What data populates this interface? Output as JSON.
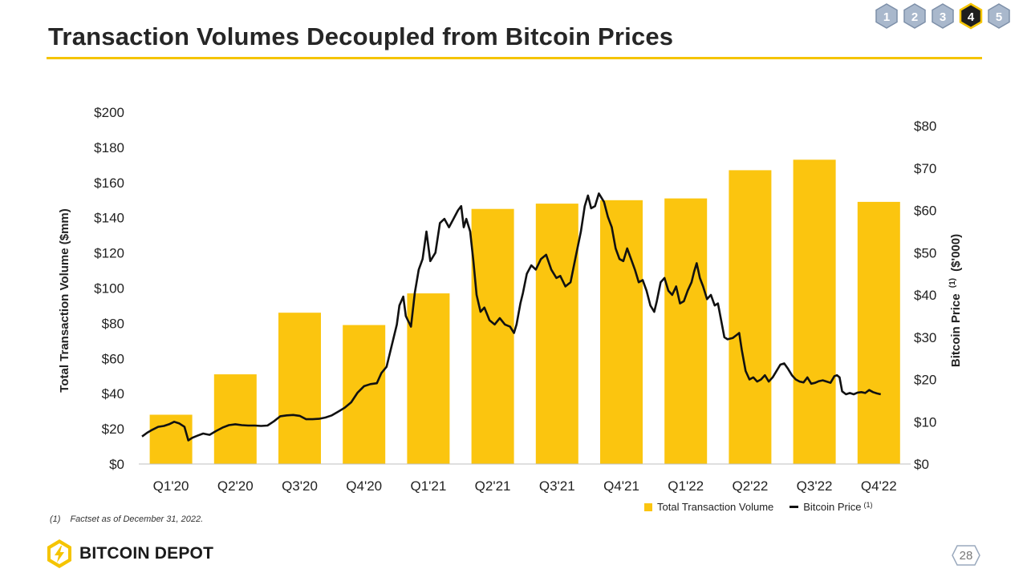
{
  "slide": {
    "title": "Transaction Volumes Decoupled from Bitcoin Prices",
    "page_number": "28",
    "brand": "BITCOIN DEPOT",
    "footnote": {
      "mark": "(1)",
      "text": "Factset as of December 31, 2022."
    }
  },
  "section_nav": {
    "items": [
      "1",
      "2",
      "3",
      "4",
      "5"
    ],
    "active": "4"
  },
  "colors": {
    "accent": "#f5c400",
    "bar": "#fbc50f",
    "line": "#111111",
    "nav_inactive": "#a9b8cc",
    "nav_active": "#1f1f1f"
  },
  "legend": {
    "bar_label": "Total Transaction Volume",
    "line_label": "Bitcoin Price",
    "line_sup": "(1)"
  },
  "chart_data": {
    "type": "bar",
    "title": "",
    "categories": [
      "Q1'20",
      "Q2'20",
      "Q3'20",
      "Q4'20",
      "Q1'21",
      "Q2'21",
      "Q3'21",
      "Q4'21",
      "Q1'22",
      "Q2'22",
      "Q3'22",
      "Q4'22"
    ],
    "series": [
      {
        "name": "Total Transaction Volume",
        "type": "bar",
        "axis": "left",
        "values": [
          28,
          51,
          86,
          79,
          97,
          145,
          148,
          150,
          151,
          167,
          173,
          149
        ]
      }
    ],
    "line_series": {
      "name": "Bitcoin Price",
      "axis": "right",
      "unit": "$'000",
      "points": [
        [
          0.0,
          6.5
        ],
        [
          0.08,
          7.4
        ],
        [
          0.16,
          8.1
        ],
        [
          0.25,
          8.8
        ],
        [
          0.34,
          9.0
        ],
        [
          0.42,
          9.4
        ],
        [
          0.5,
          10.0
        ],
        [
          0.58,
          9.6
        ],
        [
          0.66,
          8.8
        ],
        [
          0.72,
          5.6
        ],
        [
          0.78,
          6.2
        ],
        [
          0.86,
          6.7
        ],
        [
          0.95,
          7.2
        ],
        [
          1.05,
          6.9
        ],
        [
          1.15,
          7.8
        ],
        [
          1.25,
          8.6
        ],
        [
          1.35,
          9.2
        ],
        [
          1.45,
          9.4
        ],
        [
          1.55,
          9.2
        ],
        [
          1.65,
          9.1
        ],
        [
          1.75,
          9.1
        ],
        [
          1.85,
          9.0
        ],
        [
          1.95,
          9.1
        ],
        [
          2.05,
          10.1
        ],
        [
          2.15,
          11.3
        ],
        [
          2.25,
          11.5
        ],
        [
          2.35,
          11.6
        ],
        [
          2.45,
          11.4
        ],
        [
          2.55,
          10.6
        ],
        [
          2.65,
          10.6
        ],
        [
          2.75,
          10.7
        ],
        [
          2.85,
          11.0
        ],
        [
          2.95,
          11.5
        ],
        [
          3.05,
          12.4
        ],
        [
          3.15,
          13.3
        ],
        [
          3.25,
          14.6
        ],
        [
          3.35,
          16.9
        ],
        [
          3.45,
          18.4
        ],
        [
          3.55,
          18.9
        ],
        [
          3.65,
          19.1
        ],
        [
          3.72,
          21.5
        ],
        [
          3.8,
          23.0
        ],
        [
          3.88,
          28.0
        ],
        [
          3.96,
          33.0
        ],
        [
          4.0,
          37.5
        ],
        [
          4.06,
          39.6
        ],
        [
          4.1,
          35.0
        ],
        [
          4.18,
          32.5
        ],
        [
          4.24,
          40.5
        ],
        [
          4.3,
          46.0
        ],
        [
          4.36,
          48.5
        ],
        [
          4.42,
          55.0
        ],
        [
          4.48,
          48.0
        ],
        [
          4.56,
          50.0
        ],
        [
          4.63,
          57.0
        ],
        [
          4.7,
          58.0
        ],
        [
          4.77,
          56.0
        ],
        [
          4.84,
          58.0
        ],
        [
          4.91,
          60.0
        ],
        [
          4.96,
          61.0
        ],
        [
          5.0,
          56.0
        ],
        [
          5.04,
          58.0
        ],
        [
          5.1,
          55.0
        ],
        [
          5.15,
          48.0
        ],
        [
          5.2,
          40.0
        ],
        [
          5.26,
          36.0
        ],
        [
          5.32,
          37.0
        ],
        [
          5.4,
          34.0
        ],
        [
          5.48,
          33.0
        ],
        [
          5.56,
          34.5
        ],
        [
          5.64,
          33.0
        ],
        [
          5.72,
          32.5
        ],
        [
          5.78,
          31.0
        ],
        [
          5.82,
          33.0
        ],
        [
          5.88,
          38.0
        ],
        [
          5.92,
          40.5
        ],
        [
          5.98,
          45.0
        ],
        [
          6.05,
          47.0
        ],
        [
          6.12,
          46.0
        ],
        [
          6.2,
          48.5
        ],
        [
          6.28,
          49.5
        ],
        [
          6.36,
          46.0
        ],
        [
          6.44,
          44.0
        ],
        [
          6.5,
          44.5
        ],
        [
          6.58,
          42.0
        ],
        [
          6.66,
          43.0
        ],
        [
          6.74,
          49.0
        ],
        [
          6.82,
          55.0
        ],
        [
          6.88,
          61.0
        ],
        [
          6.93,
          63.5
        ],
        [
          6.98,
          60.5
        ],
        [
          7.04,
          61.0
        ],
        [
          7.1,
          64.0
        ],
        [
          7.18,
          62.0
        ],
        [
          7.24,
          58.5
        ],
        [
          7.3,
          56.0
        ],
        [
          7.36,
          51.0
        ],
        [
          7.42,
          48.5
        ],
        [
          7.48,
          48.0
        ],
        [
          7.54,
          51.0
        ],
        [
          7.6,
          48.5
        ],
        [
          7.66,
          46.0
        ],
        [
          7.72,
          43.0
        ],
        [
          7.78,
          43.5
        ],
        [
          7.84,
          41.0
        ],
        [
          7.9,
          37.5
        ],
        [
          7.96,
          36.0
        ],
        [
          8.0,
          38.5
        ],
        [
          8.06,
          43.0
        ],
        [
          8.12,
          44.0
        ],
        [
          8.18,
          41.0
        ],
        [
          8.24,
          40.0
        ],
        [
          8.3,
          42.0
        ],
        [
          8.36,
          38.0
        ],
        [
          8.42,
          38.5
        ],
        [
          8.48,
          41.0
        ],
        [
          8.54,
          43.0
        ],
        [
          8.58,
          45.5
        ],
        [
          8.62,
          47.5
        ],
        [
          8.67,
          44.0
        ],
        [
          8.72,
          42.0
        ],
        [
          8.78,
          39.0
        ],
        [
          8.84,
          40.0
        ],
        [
          8.9,
          37.5
        ],
        [
          8.95,
          38.0
        ],
        [
          9.0,
          34.0
        ],
        [
          9.05,
          30.0
        ],
        [
          9.1,
          29.5
        ],
        [
          9.18,
          29.8
        ],
        [
          9.24,
          30.5
        ],
        [
          9.28,
          31.0
        ],
        [
          9.32,
          27.0
        ],
        [
          9.38,
          22.0
        ],
        [
          9.44,
          20.0
        ],
        [
          9.5,
          20.5
        ],
        [
          9.56,
          19.5
        ],
        [
          9.62,
          20.0
        ],
        [
          9.68,
          21.0
        ],
        [
          9.74,
          19.5
        ],
        [
          9.8,
          20.5
        ],
        [
          9.86,
          22.0
        ],
        [
          9.92,
          23.5
        ],
        [
          9.98,
          23.8
        ],
        [
          10.04,
          22.5
        ],
        [
          10.1,
          21.0
        ],
        [
          10.16,
          20.0
        ],
        [
          10.22,
          19.5
        ],
        [
          10.28,
          19.3
        ],
        [
          10.34,
          20.5
        ],
        [
          10.4,
          19.0
        ],
        [
          10.46,
          19.2
        ],
        [
          10.52,
          19.6
        ],
        [
          10.58,
          19.8
        ],
        [
          10.64,
          19.5
        ],
        [
          10.7,
          19.2
        ],
        [
          10.76,
          20.8
        ],
        [
          10.8,
          21.0
        ],
        [
          10.84,
          20.5
        ],
        [
          10.88,
          17.2
        ],
        [
          10.94,
          16.5
        ],
        [
          11.0,
          16.8
        ],
        [
          11.06,
          16.5
        ],
        [
          11.12,
          16.9
        ],
        [
          11.18,
          17.0
        ],
        [
          11.24,
          16.8
        ],
        [
          11.3,
          17.5
        ],
        [
          11.36,
          17.0
        ],
        [
          11.42,
          16.7
        ],
        [
          11.48,
          16.5
        ]
      ]
    },
    "y_left": {
      "label": "Total Transaction Volume ($mm)",
      "min": 0,
      "max": 200,
      "step": 20,
      "tick_labels": [
        "$0",
        "$20",
        "$40",
        "$60",
        "$80",
        "$100",
        "$120",
        "$140",
        "$160",
        "$180",
        "$200"
      ]
    },
    "y_right": {
      "label": "Bitcoin Price",
      "label_sup": "(1)",
      "label_unit": "($'000)",
      "min": 0,
      "max": 80,
      "step": 10,
      "tick_labels": [
        "$0",
        "$10",
        "$20",
        "$30",
        "$40",
        "$50",
        "$60",
        "$70",
        "$80"
      ]
    },
    "grid": false,
    "legend_position": "bottom-right"
  }
}
